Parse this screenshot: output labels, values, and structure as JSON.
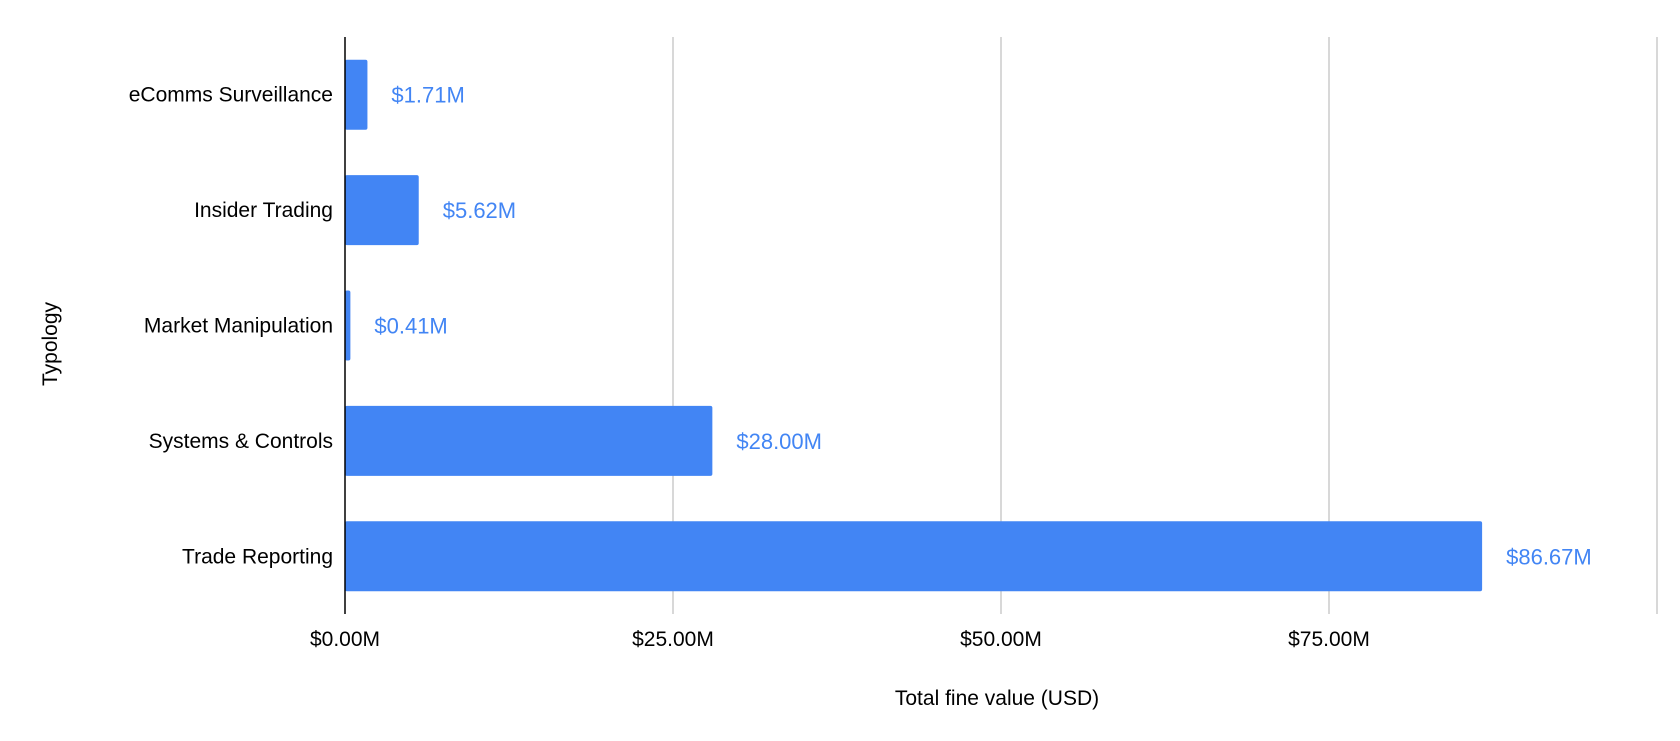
{
  "chart_data": {
    "type": "bar",
    "orientation": "horizontal",
    "title": "",
    "xlabel": "Total fine value (USD)",
    "ylabel": "Typology",
    "categories": [
      "eComms Surveillance",
      "Insider Trading",
      "Market Manipulation",
      "Systems & Controls",
      "Trade Reporting"
    ],
    "values": [
      1.71,
      5.62,
      0.41,
      28.0,
      86.67
    ],
    "data_labels": [
      "$1.71M",
      "$5.62M",
      "$0.41M",
      "$28.00M",
      "$86.67M"
    ],
    "xlim": [
      0,
      100
    ],
    "x_ticks": [
      0,
      25,
      50,
      75,
      100
    ],
    "x_tick_labels": [
      "$0.00M",
      "$25.00M",
      "$50.00M",
      "$75.00M",
      ""
    ],
    "grid": true,
    "legend": "none",
    "colors": {
      "bar": "#4285f4",
      "data_label": "#4285f4",
      "gridline": "#cccccc",
      "axis_line": "#000000"
    }
  }
}
